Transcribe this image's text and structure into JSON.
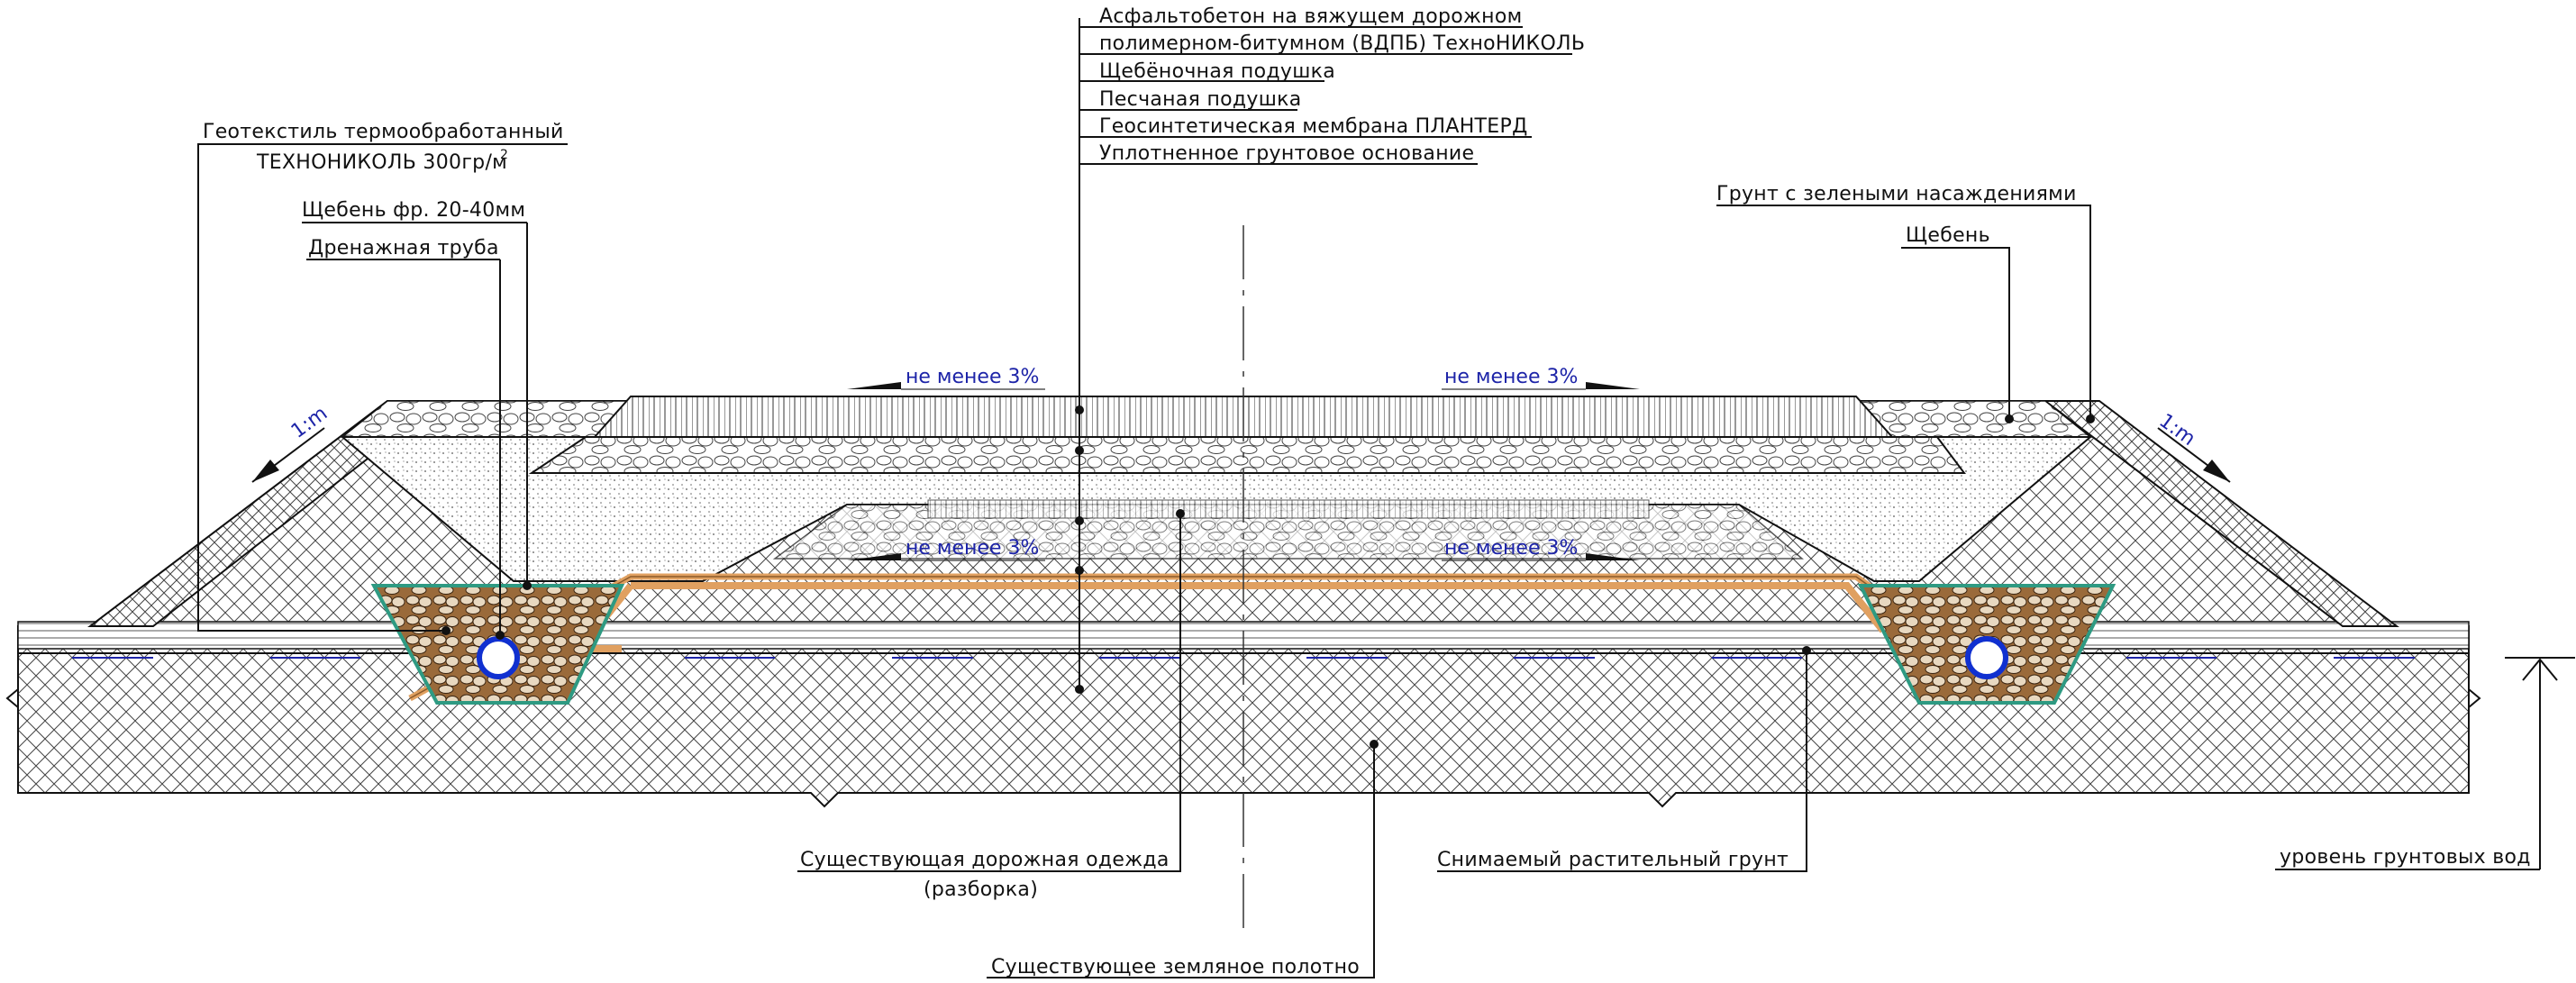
{
  "labels": {
    "asphalt_1": "Асфальтобетон на вяжущем дорожном",
    "asphalt_2": "полимерном-битумном (ВДПБ) ТехноНИКОЛЬ",
    "crushed_cushion": "Щебёночная подушка",
    "sand_cushion": "Песчаная подушка",
    "geomembrane": "Геосинтетическая мембрана ПЛАНТЕРД",
    "compacted_base": "Уплотненное грунтовое основание",
    "geotextile_1": "Геотекстиль термообработанный",
    "geotextile_2": "ТЕХНОНИКОЛЬ 300гр/м",
    "geotextile_sup": "2",
    "crushed_stone_fraction": "Щебень фр. 20-40мм",
    "drain_pipe": "Дренажная труба",
    "soil_with_plants": "Грунт с зелеными насаждениями",
    "crushed_stone": "Щебень",
    "existing_pavement_1": "Существующая дорожная одежда",
    "existing_pavement_2": "(разборка)",
    "removed_topsoil": "Снимаемый растительный грунт",
    "existing_subgrade": "Существующее земляное полотно",
    "groundwater_level": "уровень грунтовых вод",
    "slope_left": "1:m",
    "slope_right": "1:m",
    "grade_top_left": "не менее 3%",
    "grade_top_right": "не менее 3%",
    "grade_mid_left": "не менее 3%",
    "grade_mid_right": "не менее 3%"
  },
  "colors": {
    "ink": "#111111",
    "annotation_blue": "#1d24a8",
    "drain_fill": "#8a5a2b",
    "geomembrane": "#e0a060",
    "geotextile": "#2e9a82",
    "pipe": "#1030d0"
  }
}
